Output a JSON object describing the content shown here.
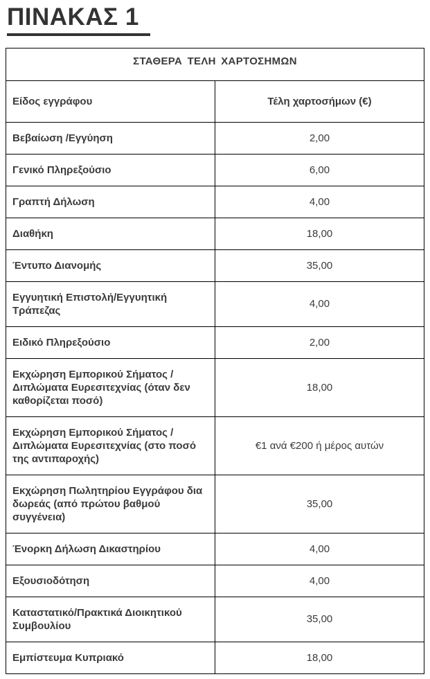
{
  "page_title": "ΠΙΝΑΚΑΣ 1",
  "table": {
    "caption": "ΣΤΑΘΕΡΑ ΤΕΛΗ ΧΑΡΤΟΣΗΜΩΝ",
    "columns": {
      "document": "Είδος εγγράφου",
      "fee": "Τέλη χαρτοσήμων (€)"
    },
    "rows": [
      {
        "document": "Βεβαίωση /Εγγύηση",
        "fee": "2,00"
      },
      {
        "document": "Γενικό Πληρεξούσιο",
        "fee": "6,00"
      },
      {
        "document": "Γραπτή Δήλωση",
        "fee": "4,00"
      },
      {
        "document": "Διαθήκη",
        "fee": "18,00"
      },
      {
        "document": "Έντυπο Διανομής",
        "fee": "35,00"
      },
      {
        "document": "Εγγυητική Επιστολή/Εγγυητική Τράπεζας",
        "fee": "4,00"
      },
      {
        "document": "Ειδικό Πληρεξούσιο",
        "fee": "2,00"
      },
      {
        "document": "Εκχώρηση Εμπορικού Σήματος /Διπλώματα Ευρεσιτεχνίας  (όταν δεν καθορίζεται ποσό)",
        "fee": "18,00"
      },
      {
        "document": "Εκχώρηση Εμπορικού Σήματος /Διπλώματα Ευρεσιτεχνίας (στο ποσό της αντιπαροχής)",
        "fee": "€1 ανά €200 ή μέρος αυτών"
      },
      {
        "document": "Εκχώρηση Πωλητηρίου Εγγράφου δια δωρεάς (από πρώτου βαθμού συγγένεια)",
        "fee": "35,00"
      },
      {
        "document": "Ένορκη Δήλωση Δικαστηρίου",
        "fee": "4,00"
      },
      {
        "document": "Εξουσιοδότηση",
        "fee": "4,00"
      },
      {
        "document": "Καταστατικό/Πρακτικά Διοικητικού Συμβουλίου",
        "fee": "35,00"
      },
      {
        "document": "Εμπίστευμα Κυπριακό",
        "fee": "18,00"
      }
    ]
  },
  "colors": {
    "text": "#3b3b3b",
    "title": "#333333",
    "border": "#000000",
    "background": "#ffffff"
  }
}
